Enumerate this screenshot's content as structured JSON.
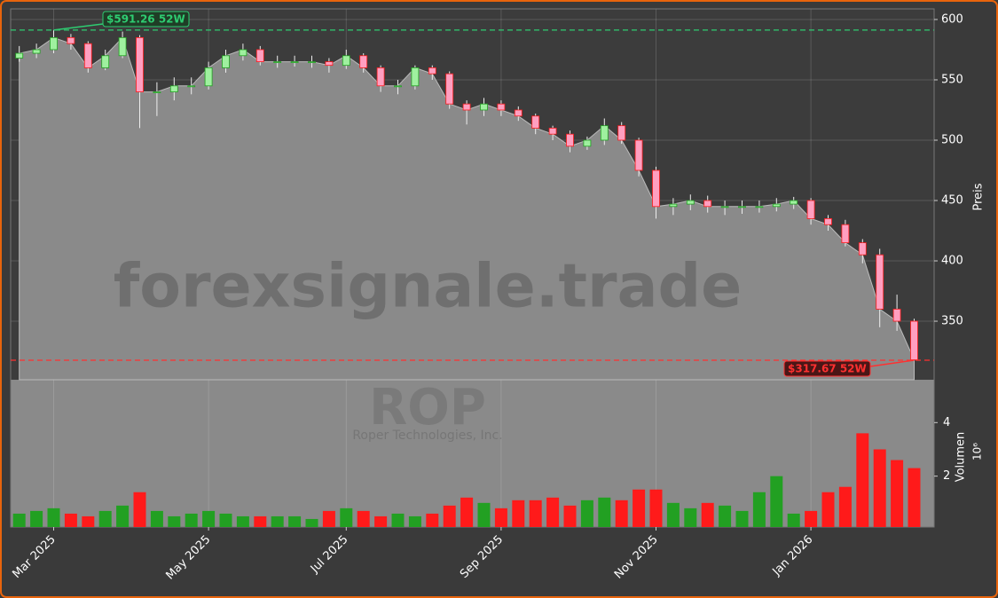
{
  "chart_data": {
    "type": "candlestick",
    "watermark": "forexsignale.trade",
    "ticker": "ROP",
    "company": "Roper Technologies, Inc.",
    "y_label": "Preis",
    "y2_label": "Volumen",
    "y2_multiplier": "10⁶",
    "categories": [
      null,
      null,
      "Mar 2025",
      null,
      null,
      null,
      null,
      null,
      null,
      null,
      null,
      "May 2025",
      null,
      null,
      null,
      null,
      null,
      null,
      null,
      "Jul 2025",
      null,
      null,
      null,
      null,
      null,
      null,
      null,
      null,
      "Sep 2025",
      null,
      null,
      null,
      null,
      null,
      null,
      null,
      null,
      "Nov 2025",
      null,
      null,
      null,
      null,
      null,
      null,
      null,
      null,
      "Jan 2026",
      null,
      null,
      null,
      null,
      null,
      null
    ],
    "open": [
      568,
      572,
      575,
      585,
      580,
      560,
      570,
      585,
      540,
      540,
      545,
      545,
      560,
      570,
      575,
      565,
      565,
      565,
      565,
      562,
      570,
      560,
      545,
      545,
      560,
      555,
      530,
      525,
      530,
      525,
      520,
      510,
      505,
      495,
      500,
      512,
      500,
      475,
      445,
      447,
      450,
      445,
      445,
      445,
      445,
      447,
      450,
      435,
      430,
      415,
      405,
      360,
      350
    ],
    "high": [
      578,
      580,
      591.26,
      588,
      582,
      575,
      590,
      587,
      548,
      552,
      552,
      565,
      575,
      580,
      578,
      570,
      570,
      570,
      568,
      575,
      572,
      562,
      550,
      562,
      562,
      557,
      533,
      535,
      533,
      528,
      522,
      512,
      508,
      503,
      518,
      515,
      502,
      478,
      452,
      455,
      454,
      450,
      450,
      450,
      452,
      453,
      452,
      438,
      434,
      418,
      410,
      372,
      352
    ],
    "low": [
      565,
      568,
      572,
      575,
      556,
      558,
      568,
      510,
      520,
      533,
      538,
      542,
      556,
      566,
      562,
      560,
      561,
      560,
      556,
      559,
      556,
      540,
      538,
      542,
      550,
      526,
      513,
      520,
      520,
      516,
      505,
      500,
      490,
      492,
      496,
      497,
      470,
      435,
      438,
      442,
      440,
      438,
      439,
      440,
      441,
      443,
      430,
      425,
      412,
      398,
      345,
      342,
      317.67
    ],
    "close": [
      572,
      575,
      585,
      580,
      560,
      570,
      585,
      540,
      540,
      545,
      545,
      560,
      570,
      575,
      565,
      565,
      565,
      565,
      562,
      570,
      560,
      545,
      545,
      560,
      555,
      530,
      525,
      530,
      525,
      520,
      510,
      505,
      495,
      500,
      512,
      500,
      475,
      445,
      447,
      450,
      445,
      445,
      445,
      445,
      447,
      450,
      435,
      430,
      415,
      405,
      360,
      350,
      318
    ],
    "volume": [
      0.6,
      0.7,
      0.8,
      0.6,
      0.5,
      0.7,
      0.9,
      1.4,
      0.7,
      0.5,
      0.6,
      0.7,
      0.6,
      0.5,
      0.5,
      0.5,
      0.5,
      0.4,
      0.7,
      0.8,
      0.7,
      0.5,
      0.6,
      0.5,
      0.6,
      0.9,
      1.2,
      1.0,
      0.8,
      1.1,
      1.1,
      1.2,
      0.9,
      1.1,
      1.2,
      1.1,
      1.5,
      1.5,
      1.0,
      0.8,
      1.0,
      0.9,
      0.7,
      1.4,
      2.0,
      0.6,
      0.7,
      1.4,
      1.6,
      3.6,
      3.0,
      2.6,
      2.3
    ],
    "up_color": "#22a022",
    "down_color": "#ff1a1a",
    "ylim": [
      301.5,
      608.8
    ],
    "yticks": [
      350,
      400,
      450,
      500,
      550,
      600
    ],
    "y2lim": [
      0.1,
      5.6
    ],
    "y2ticks": [
      2,
      4
    ],
    "annotations": [
      {
        "label": "$591.26 52W",
        "value": 591.26,
        "color": "#2ecc71"
      },
      {
        "label": "$317.67 52W",
        "value": 317.67,
        "color": "#ff3030"
      }
    ],
    "grid": true
  }
}
